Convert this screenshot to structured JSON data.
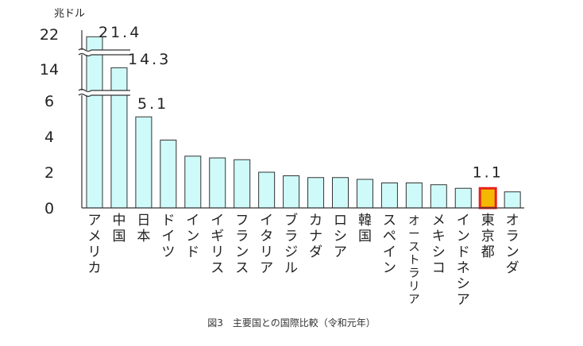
{
  "chart_data": {
    "type": "bar",
    "unit_label": "兆ドル",
    "caption": "図3　主要国との国際比較（令和元年）",
    "categories": [
      "アメリカ",
      "中国",
      "日本",
      "ドイツ",
      "インド",
      "イギリス",
      "フランス",
      "イタリア",
      "ブラジル",
      "カナダ",
      "ロシア",
      "韓国",
      "スペイン",
      "オーストラリア",
      "メキシコ",
      "インドネシア",
      "東京都",
      "オランダ"
    ],
    "values": [
      21.4,
      14.3,
      5.1,
      3.8,
      2.9,
      2.8,
      2.7,
      2.0,
      1.8,
      1.7,
      1.7,
      1.6,
      1.4,
      1.4,
      1.3,
      1.1,
      1.1,
      0.9
    ],
    "data_labels": {
      "アメリカ": "21.4",
      "中国": "14.3",
      "日本": "5.1",
      "東京都": "1.1"
    },
    "y_ticks": [
      "0",
      "2",
      "4",
      "6",
      "14",
      "22"
    ],
    "axis_break": "between 6 and 14 on the y axis",
    "highlight_category": "東京都",
    "colors": {
      "bar_fill": "#cffafa",
      "bar_stroke": "#333333",
      "highlight_fill": "#f5b800",
      "highlight_stroke": "#e8201c"
    }
  }
}
